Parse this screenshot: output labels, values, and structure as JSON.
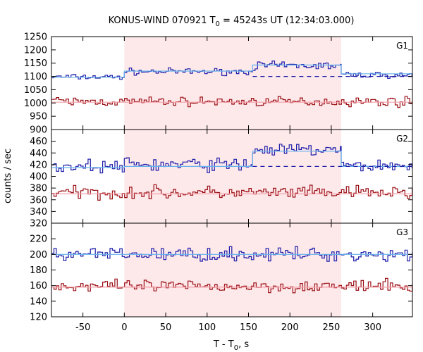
{
  "chart_data": {
    "type": "line",
    "title": {
      "main": "KONUS-WIND 070921 T",
      "sub": "0",
      "tail": " = 45243s UT (12:34:03.000)"
    },
    "xlabel": {
      "main": "T - T",
      "sub": "0",
      "tail": ", s"
    },
    "ylabel": "counts / sec",
    "xlim": [
      -88,
      348
    ],
    "x_ticks": [
      -50,
      0,
      50,
      100,
      150,
      200,
      250,
      300
    ],
    "x_tick_labels": [
      "-50",
      "0",
      "50",
      "100",
      "150",
      "200",
      "250",
      "300"
    ],
    "highlight_interval": [
      0,
      262
    ],
    "colors": {
      "series_high": "#1f1faa",
      "series_low": "#9a0e14",
      "fit_high": "#66b3ee",
      "fit_low": "#f4a0a8",
      "highlight": "#fde8ea",
      "background_dashed": "#1f1faa"
    },
    "panels": [
      {
        "name": "G1",
        "ylim": [
          900,
          1250
        ],
        "y_ticks": [
          900,
          950,
          1000,
          1050,
          1100,
          1150,
          1200,
          1250
        ],
        "series": [
          {
            "segments": [
              {
                "start": -88,
                "end": 0,
                "mean": 1098,
                "amplitude": 10
              },
              {
                "start": 0,
                "end": 155,
                "mean": 1118,
                "amplitude": 11
              },
              {
                "start": 155,
                "end": 262,
                "mean": 1140,
                "amplitude": 14
              },
              {
                "start": 262,
                "end": 348,
                "mean": 1106,
                "amplitude": 10
              }
            ],
            "fit": [
              [
                -88,
                1097
              ],
              [
                0,
                1097
              ],
              [
                0,
                1120
              ],
              [
                155,
                1120
              ],
              [
                155,
                1143
              ],
              [
                262,
                1143
              ],
              [
                262,
                1110
              ],
              [
                348,
                1110
              ]
            ],
            "background": [
              [
                155,
                1100
              ],
              [
                348,
                1100
              ]
            ]
          },
          {
            "segments": [
              {
                "start": -88,
                "end": 348,
                "mean": 1005,
                "amplitude": 16
              }
            ],
            "fit": [
              [
                -88,
                1003
              ],
              [
                348,
                1003
              ]
            ]
          }
        ]
      },
      {
        "name": "G2",
        "ylim": [
          320,
          480
        ],
        "y_ticks": [
          320,
          340,
          360,
          380,
          400,
          420,
          440,
          460
        ],
        "series": [
          {
            "segments": [
              {
                "start": -88,
                "end": 0,
                "mean": 417,
                "amplitude": 10
              },
              {
                "start": 0,
                "end": 155,
                "mean": 420,
                "amplitude": 11
              },
              {
                "start": 155,
                "end": 262,
                "mean": 445,
                "amplitude": 10
              },
              {
                "start": 262,
                "end": 348,
                "mean": 418,
                "amplitude": 10
              }
            ],
            "fit": [
              [
                -88,
                415
              ],
              [
                0,
                415
              ],
              [
                0,
                417
              ],
              [
                155,
                417
              ],
              [
                155,
                443
              ],
              [
                262,
                443
              ],
              [
                262,
                417
              ],
              [
                348,
                417
              ]
            ],
            "background": [
              [
                155,
                417
              ],
              [
                348,
                417
              ]
            ]
          },
          {
            "segments": [
              {
                "start": -88,
                "end": 348,
                "mean": 372,
                "amplitude": 10
              }
            ],
            "fit": [
              [
                -88,
                370
              ],
              [
                348,
                370
              ]
            ]
          }
        ]
      },
      {
        "name": "G3",
        "ylim": [
          120,
          240
        ],
        "y_ticks": [
          120,
          140,
          160,
          180,
          200,
          220
        ],
        "series": [
          {
            "segments": [
              {
                "start": -88,
                "end": 348,
                "mean": 200,
                "amplitude": 8
              }
            ],
            "fit": [
              [
                -88,
                200
              ],
              [
                348,
                200
              ]
            ]
          },
          {
            "segments": [
              {
                "start": -88,
                "end": 348,
                "mean": 159,
                "amplitude": 7
              }
            ],
            "fit": [
              [
                -88,
                158
              ],
              [
                348,
                158
              ]
            ]
          }
        ]
      }
    ]
  }
}
